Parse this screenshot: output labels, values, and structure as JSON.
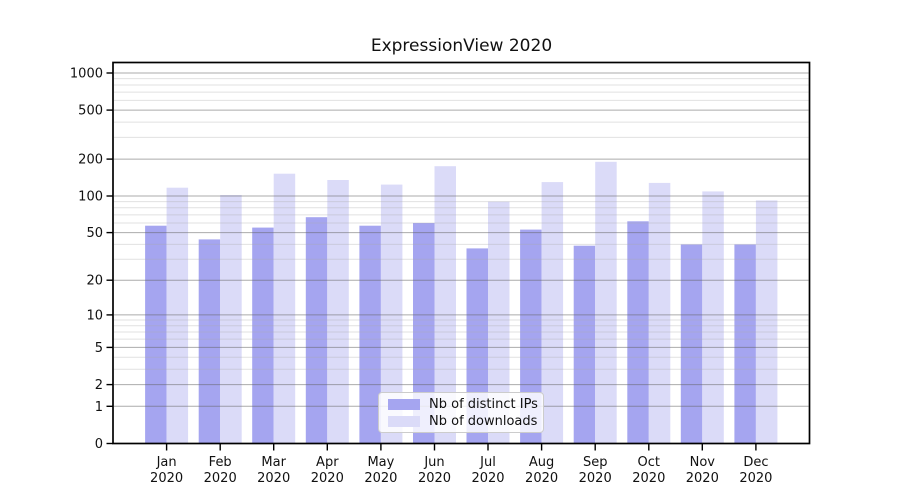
{
  "chart_data": {
    "type": "bar",
    "title": "ExpressionView 2020",
    "categories": [
      "Jan",
      "Feb",
      "Mar",
      "Apr",
      "May",
      "Jun",
      "Jul",
      "Aug",
      "Sep",
      "Oct",
      "Nov",
      "Dec"
    ],
    "x_year_label": "2020",
    "series": [
      {
        "name": "Nb of distinct IPs",
        "color": "#a5a5f0",
        "values": [
          57,
          44,
          55,
          67,
          57,
          60,
          37,
          53,
          39,
          62,
          40,
          40
        ]
      },
      {
        "name": "Nb of downloads",
        "color": "#dbdbf8",
        "values": [
          117,
          102,
          152,
          135,
          124,
          175,
          90,
          130,
          190,
          128,
          109,
          92
        ]
      }
    ],
    "yscale": "symlog",
    "y_ticks": [
      0,
      1,
      2,
      5,
      10,
      20,
      50,
      100,
      200,
      500,
      1000
    ],
    "ylim": [
      0,
      1200
    ],
    "grid": "major+minor, drawn over bars",
    "legend_position": "lower center"
  }
}
